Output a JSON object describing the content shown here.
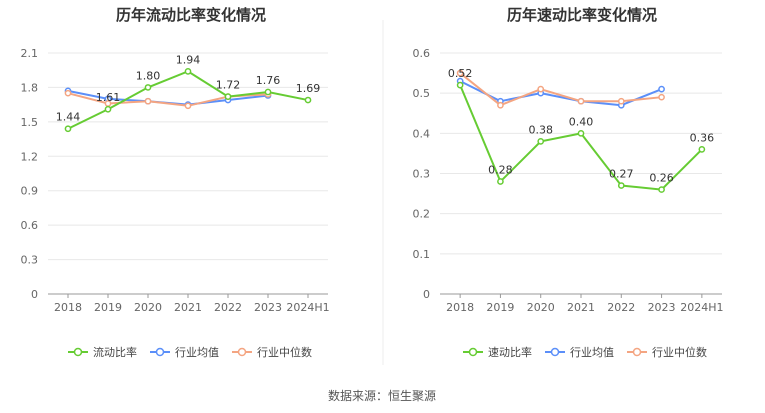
{
  "source_label": "数据来源：恒生聚源",
  "chart_data": [
    {
      "type": "line",
      "title": "历年流动比率变化情况",
      "categories": [
        "2018",
        "2019",
        "2020",
        "2021",
        "2022",
        "2023",
        "2024H1"
      ],
      "ylim": [
        0,
        2.1
      ],
      "yticks": [
        "0",
        "0.3",
        "0.6",
        "0.9",
        "1.2",
        "1.5",
        "1.8",
        "2.1"
      ],
      "grid": true,
      "legend_position": "bottom",
      "series": [
        {
          "name": "流动比率",
          "color": "#66cc33",
          "values": [
            1.44,
            1.61,
            1.8,
            1.94,
            1.72,
            1.76,
            1.69
          ],
          "labels": [
            "1.44",
            "1.61",
            "1.80",
            "1.94",
            "1.72",
            "1.76",
            "1.69"
          ]
        },
        {
          "name": "行业均值",
          "color": "#5b8ff9",
          "values": [
            1.77,
            1.7,
            1.68,
            1.65,
            1.69,
            1.73,
            null
          ]
        },
        {
          "name": "行业中位数",
          "color": "#f4a582",
          "values": [
            1.75,
            1.66,
            1.68,
            1.64,
            1.72,
            1.74,
            null
          ]
        }
      ]
    },
    {
      "type": "line",
      "title": "历年速动比率变化情况",
      "categories": [
        "2018",
        "2019",
        "2020",
        "2021",
        "2022",
        "2023",
        "2024H1"
      ],
      "ylim": [
        0,
        0.6
      ],
      "yticks": [
        "0",
        "0.1",
        "0.2",
        "0.3",
        "0.4",
        "0.5",
        "0.6"
      ],
      "grid": true,
      "legend_position": "bottom",
      "series": [
        {
          "name": "速动比率",
          "color": "#66cc33",
          "values": [
            0.52,
            0.28,
            0.38,
            0.4,
            0.27,
            0.26,
            0.36
          ],
          "labels": [
            "0.52",
            "0.28",
            "0.38",
            "0.40",
            "0.27",
            "0.26",
            "0.36"
          ]
        },
        {
          "name": "行业均值",
          "color": "#5b8ff9",
          "values": [
            0.53,
            0.48,
            0.5,
            0.48,
            0.47,
            0.51,
            null
          ]
        },
        {
          "name": "行业中位数",
          "color": "#f4a582",
          "values": [
            0.55,
            0.47,
            0.51,
            0.48,
            0.48,
            0.49,
            null
          ]
        }
      ]
    }
  ]
}
